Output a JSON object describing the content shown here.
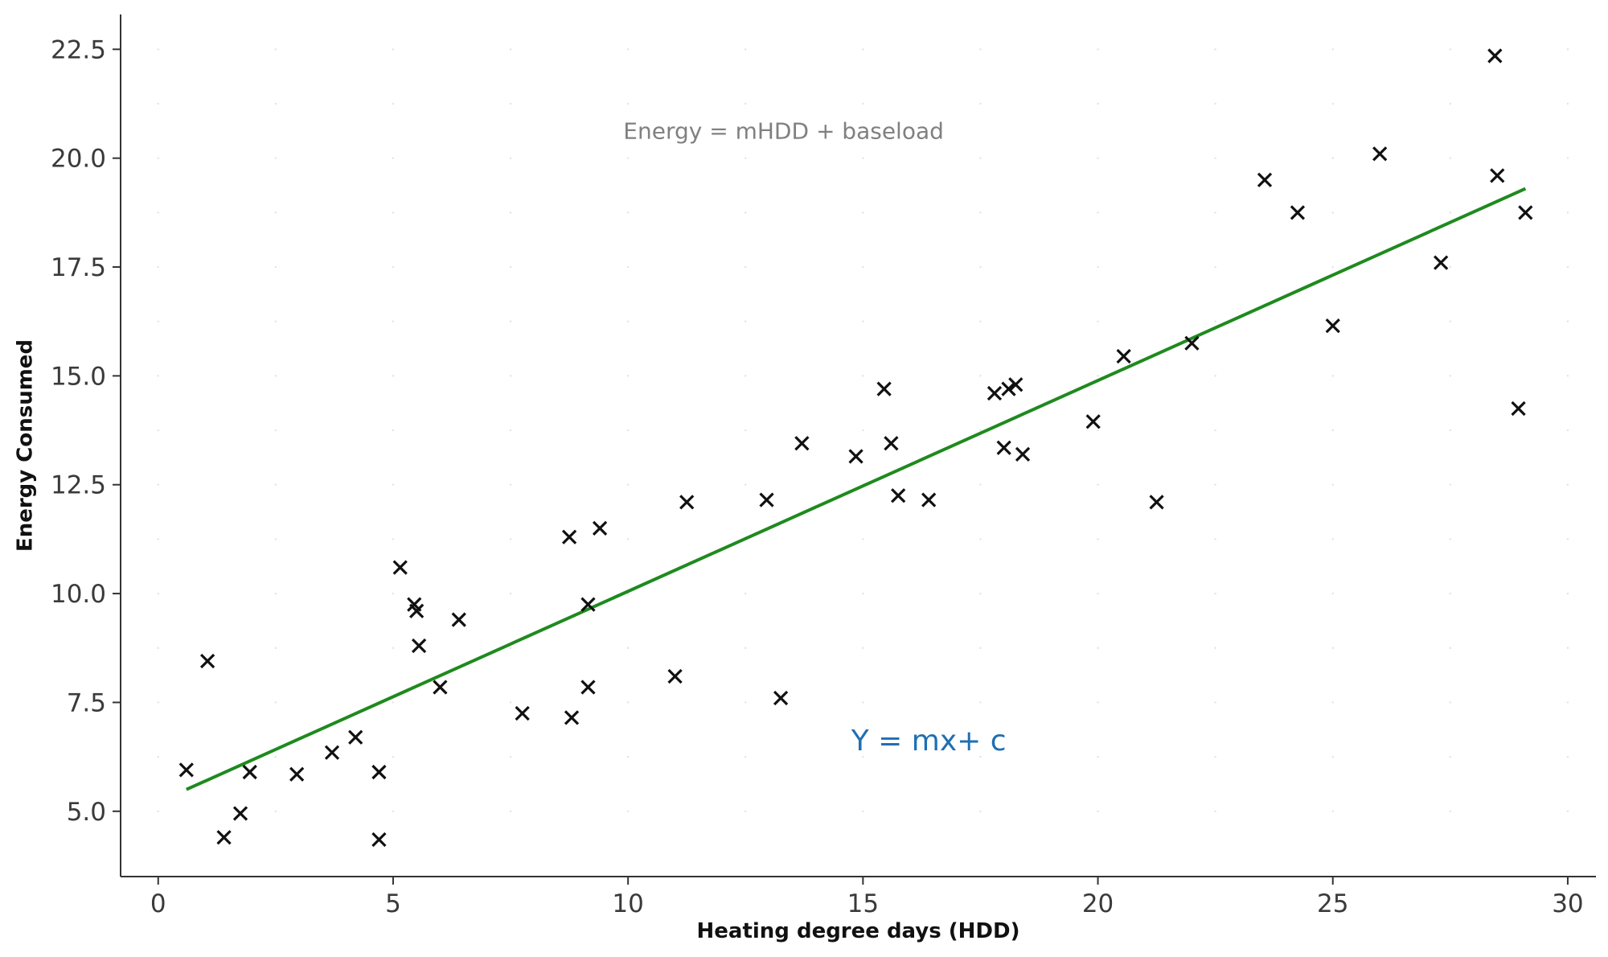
{
  "chart_data": {
    "type": "scatter",
    "title": "",
    "xlabel": "Heating degree days (HDD)",
    "ylabel": "Energy Consumed",
    "xlim": [
      -0.8,
      30.6
    ],
    "ylim": [
      3.5,
      23.3
    ],
    "xticks": [
      0,
      5,
      10,
      15,
      20,
      25,
      30
    ],
    "xtick_labels": [
      "0",
      "5",
      "10",
      "15",
      "20",
      "25",
      "30"
    ],
    "yticks": [
      5.0,
      7.5,
      10.0,
      12.5,
      15.0,
      17.5,
      20.0,
      22.5
    ],
    "ytick_labels": [
      "5.0",
      "7.5",
      "10.0",
      "12.5",
      "15.0",
      "17.5",
      "20.0",
      "22.5"
    ],
    "grid": "minor dotted",
    "marker": "x",
    "marker_color": "#111111",
    "line_color": "#1e8a1e",
    "points": [
      {
        "x": 0.6,
        "y": 5.95
      },
      {
        "x": 1.05,
        "y": 8.45
      },
      {
        "x": 1.4,
        "y": 4.4
      },
      {
        "x": 1.75,
        "y": 4.95
      },
      {
        "x": 1.95,
        "y": 5.9
      },
      {
        "x": 2.95,
        "y": 5.85
      },
      {
        "x": 3.7,
        "y": 6.35
      },
      {
        "x": 4.2,
        "y": 6.7
      },
      {
        "x": 4.7,
        "y": 5.9
      },
      {
        "x": 4.7,
        "y": 4.35
      },
      {
        "x": 5.15,
        "y": 10.6
      },
      {
        "x": 5.45,
        "y": 9.75
      },
      {
        "x": 5.5,
        "y": 9.6
      },
      {
        "x": 5.55,
        "y": 8.8
      },
      {
        "x": 6.0,
        "y": 7.85
      },
      {
        "x": 6.4,
        "y": 9.4
      },
      {
        "x": 7.75,
        "y": 7.25
      },
      {
        "x": 8.75,
        "y": 11.3
      },
      {
        "x": 8.8,
        "y": 7.15
      },
      {
        "x": 9.15,
        "y": 7.85
      },
      {
        "x": 9.15,
        "y": 9.75
      },
      {
        "x": 9.4,
        "y": 11.5
      },
      {
        "x": 11.0,
        "y": 8.1
      },
      {
        "x": 11.25,
        "y": 12.1
      },
      {
        "x": 12.95,
        "y": 12.15
      },
      {
        "x": 13.25,
        "y": 7.6
      },
      {
        "x": 13.7,
        "y": 13.45
      },
      {
        "x": 14.85,
        "y": 13.15
      },
      {
        "x": 15.45,
        "y": 14.7
      },
      {
        "x": 15.6,
        "y": 13.45
      },
      {
        "x": 15.75,
        "y": 12.25
      },
      {
        "x": 16.4,
        "y": 12.15
      },
      {
        "x": 17.8,
        "y": 14.6
      },
      {
        "x": 18.0,
        "y": 13.35
      },
      {
        "x": 18.1,
        "y": 14.7
      },
      {
        "x": 18.25,
        "y": 14.8
      },
      {
        "x": 18.4,
        "y": 13.2
      },
      {
        "x": 19.9,
        "y": 13.95
      },
      {
        "x": 20.55,
        "y": 15.45
      },
      {
        "x": 21.25,
        "y": 12.1
      },
      {
        "x": 22.0,
        "y": 15.75
      },
      {
        "x": 23.55,
        "y": 19.5
      },
      {
        "x": 24.25,
        "y": 18.75
      },
      {
        "x": 25.0,
        "y": 16.15
      },
      {
        "x": 26.0,
        "y": 20.1
      },
      {
        "x": 27.3,
        "y": 17.6
      },
      {
        "x": 28.45,
        "y": 22.35
      },
      {
        "x": 28.5,
        "y": 19.6
      },
      {
        "x": 28.95,
        "y": 14.25
      },
      {
        "x": 29.1,
        "y": 18.75
      }
    ],
    "fit_line": {
      "x": [
        0.6,
        29.1
      ],
      "y": [
        5.5,
        19.3
      ]
    },
    "annotations": [
      {
        "text": "Energy = mHDD + baseload",
        "x": 9.9,
        "y": 20.45,
        "color": "#808080",
        "style": "grey"
      },
      {
        "text": "Y = mx+ c",
        "x": 14.75,
        "y": 6.4,
        "color": "#1f6fb2",
        "style": "blue"
      }
    ]
  }
}
